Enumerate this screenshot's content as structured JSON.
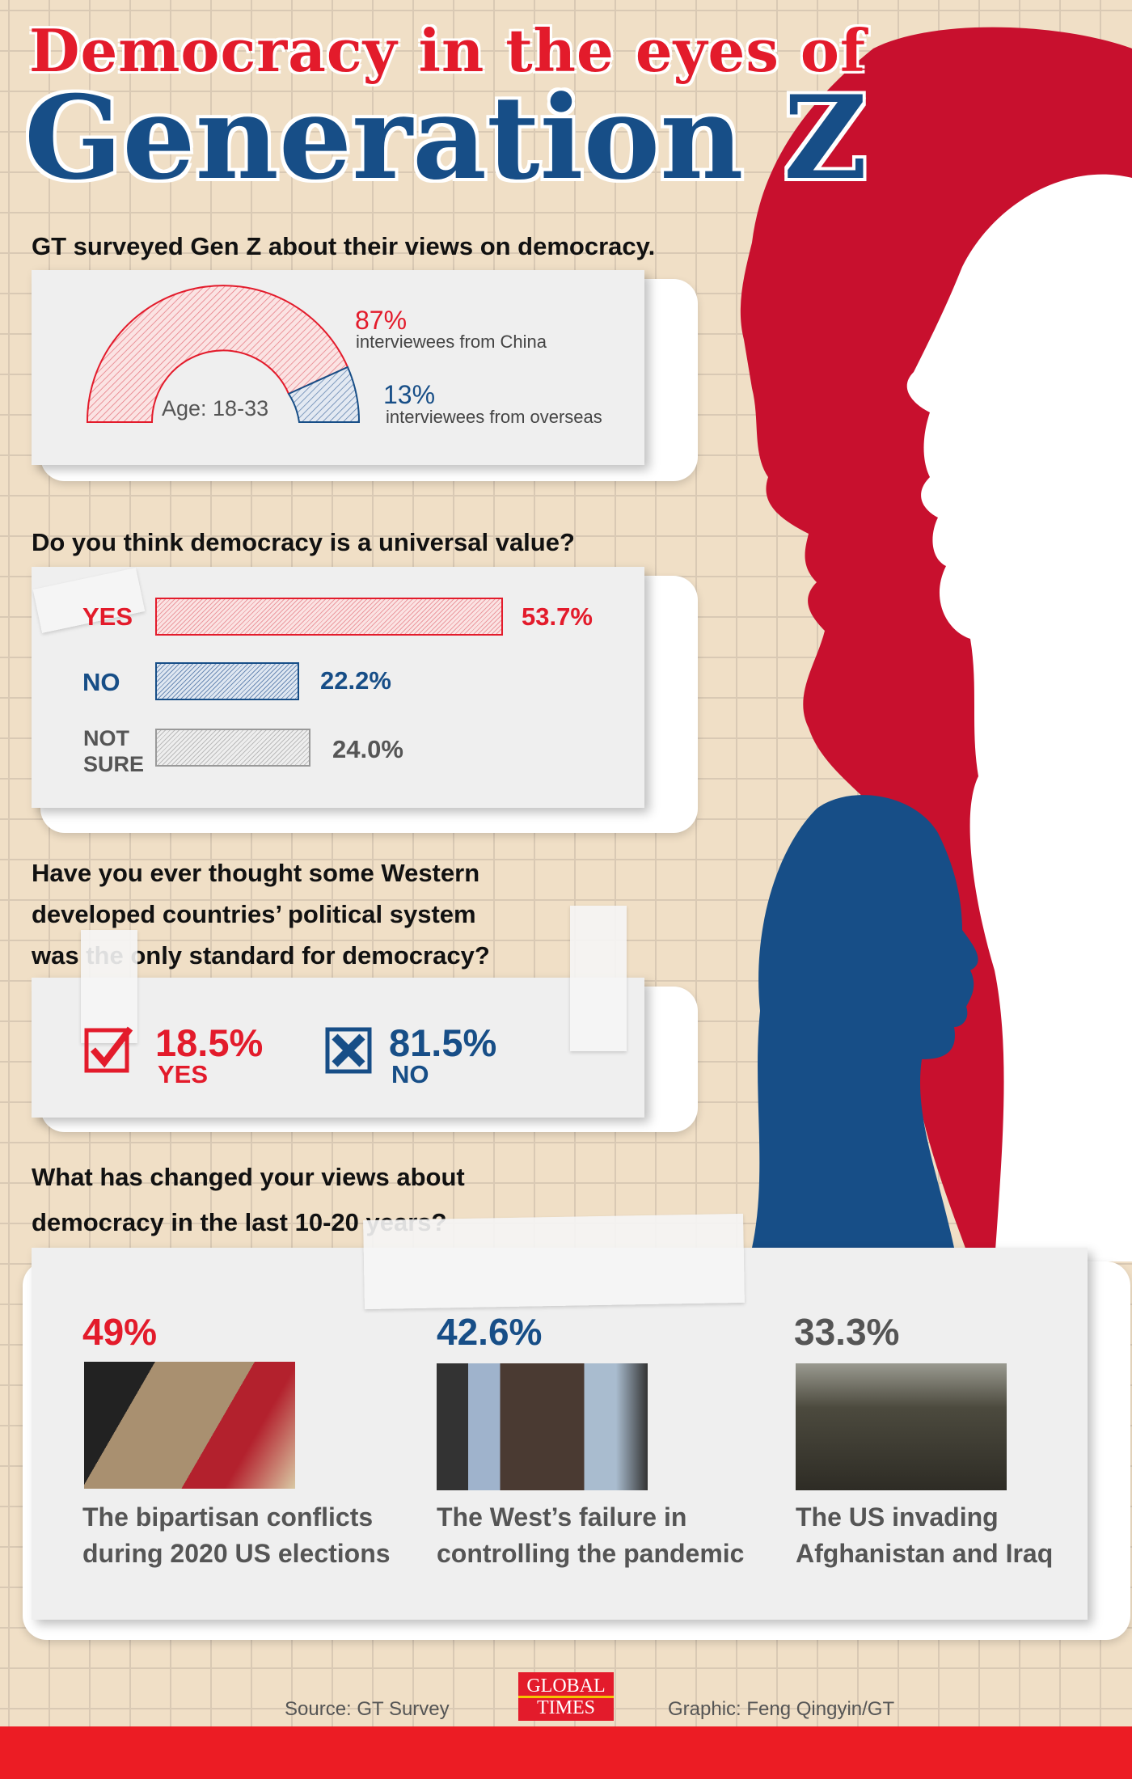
{
  "title": {
    "line1": "Democracy in the eyes of",
    "line2": "Generation Z"
  },
  "survey": {
    "heading": "GT surveyed Gen Z about their views on democracy.",
    "age": "Age: 18-33",
    "china": {
      "pct": "87%",
      "value": 87,
      "label": "interviewees from China"
    },
    "overseas": {
      "pct": "13%",
      "value": 13,
      "label": "interviewees from overseas"
    }
  },
  "q1": {
    "heading": "Do you think democracy is a universal value?",
    "rows": [
      {
        "label": "YES",
        "pct": "53.7%",
        "value": 53.7,
        "color": "#e31b2b"
      },
      {
        "label": "NO",
        "pct": "22.2%",
        "value": 22.2,
        "color": "#174e87"
      },
      {
        "label_line1": "NOT",
        "label_line2": "SURE",
        "pct": "24.0%",
        "value": 24.0,
        "color": "#999999"
      }
    ]
  },
  "q2": {
    "heading_lines": [
      "Have you ever thought some Western",
      "developed countries’ political system",
      "was the only standard for democracy?"
    ],
    "yes": {
      "pct": "18.5%",
      "label": "YES",
      "icon": "checkbox-checked-icon"
    },
    "no": {
      "pct": "81.5%",
      "label": "NO",
      "icon": "checkbox-x-icon"
    }
  },
  "q3": {
    "heading_lines": [
      "What has changed your views about",
      "democracy in the last 10-20 years?"
    ],
    "items": [
      {
        "pct": "49%",
        "line1": "The bipartisan conflicts",
        "line2": "during 2020 US elections",
        "color": "#e31b2b"
      },
      {
        "pct": "42.6%",
        "line1": "The West’s failure in",
        "line2": "controlling the pandemic",
        "color": "#174e87"
      },
      {
        "pct": "33.3%",
        "line1": "The US invading",
        "line2": "Afghanistan and Iraq",
        "color": "#555555"
      }
    ]
  },
  "footer": {
    "source": "Source: GT Survey",
    "graphic": "Graphic: Feng Qingyin/GT",
    "logo_line1": "GLOBAL",
    "logo_line2": "TIMES"
  },
  "colors": {
    "red": "#e31b2b",
    "blue": "#174e87"
  }
}
